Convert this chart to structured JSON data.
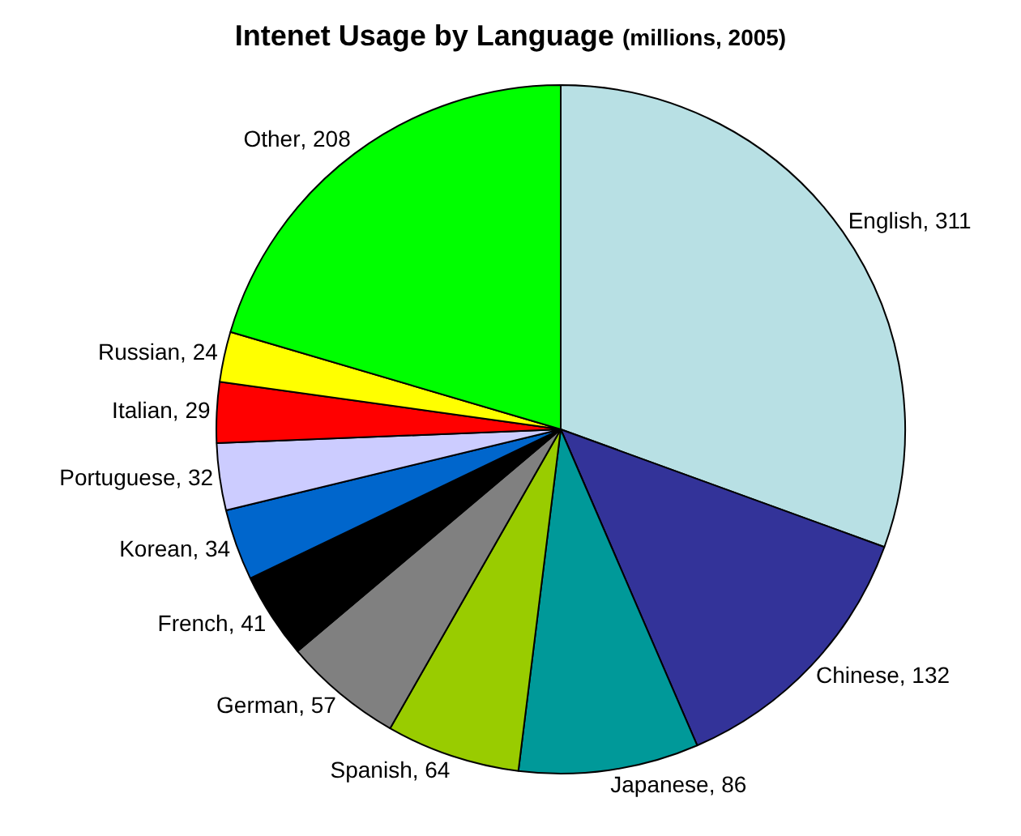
{
  "chart_data": {
    "type": "pie",
    "title": "Intenet Usage by Language",
    "subtitle": "(millions, 2005)",
    "categories": [
      "English",
      "Chinese",
      "Japanese",
      "Spanish",
      "German",
      "French",
      "Korean",
      "Portuguese",
      "Italian",
      "Russian",
      "Other"
    ],
    "values": [
      311,
      132,
      86,
      64,
      57,
      41,
      34,
      32,
      29,
      24,
      208
    ],
    "colors": [
      "#b8e0e4",
      "#333399",
      "#009999",
      "#99cc00",
      "#808080",
      "#000000",
      "#0066cc",
      "#ccccff",
      "#ff0000",
      "#ffff00",
      "#00ff00"
    ],
    "value_labels": [
      ", 311",
      ", 132",
      ", 86",
      ", 64",
      ", 57",
      ", 41",
      ", 34",
      ", 32",
      ", 29",
      ", 24",
      ", 208"
    ],
    "legend": false
  }
}
